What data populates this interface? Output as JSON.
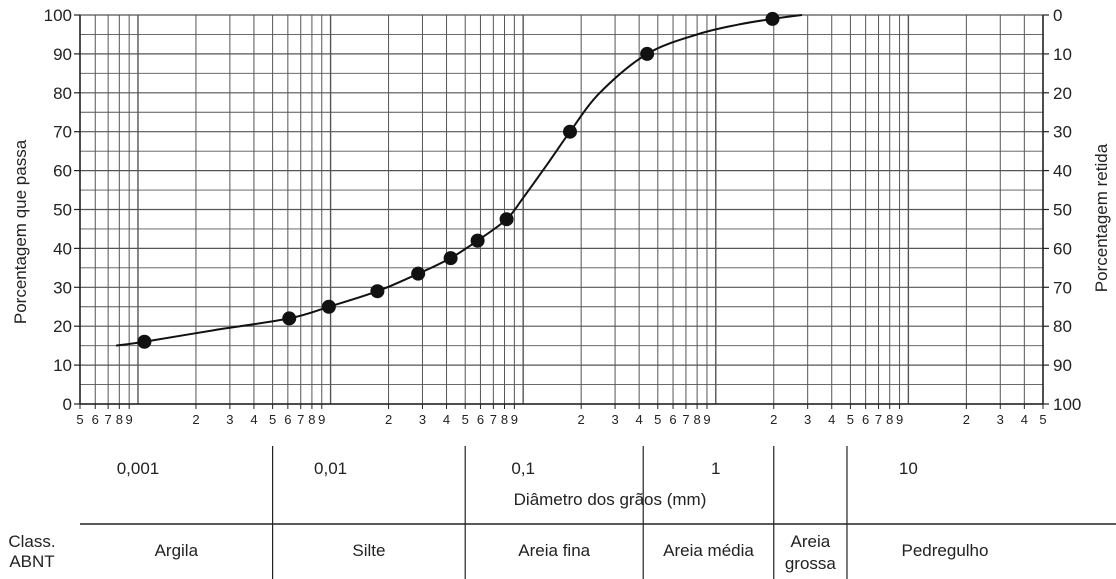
{
  "chart_data": {
    "type": "line",
    "title": "",
    "xlabel": "Diâmetro dos grãos (mm)",
    "ylabel_left": "Porcentagem que passa",
    "ylabel_right": "Porcentagem retida",
    "x_scale": "log",
    "xlim": [
      0.0005,
      50
    ],
    "ylim": [
      0,
      100
    ],
    "grid": true,
    "y_ticks_left": [
      "0",
      "10",
      "20",
      "30",
      "40",
      "50",
      "60",
      "70",
      "80",
      "90",
      "100"
    ],
    "y_ticks_right": [
      "100",
      "90",
      "80",
      "70",
      "60",
      "50",
      "40",
      "30",
      "20",
      "10",
      "0"
    ],
    "x_minor_tick_labels": [
      {
        "label": "5",
        "x": 0.0005
      },
      {
        "label": "6",
        "x": 0.0006
      },
      {
        "label": "7",
        "x": 0.0007
      },
      {
        "label": "8",
        "x": 0.0008
      },
      {
        "label": "9",
        "x": 0.0009
      },
      {
        "label": "2",
        "x": 0.002
      },
      {
        "label": "3",
        "x": 0.003
      },
      {
        "label": "4",
        "x": 0.004
      },
      {
        "label": "5",
        "x": 0.005
      },
      {
        "label": "6",
        "x": 0.006
      },
      {
        "label": "7",
        "x": 0.007
      },
      {
        "label": "8",
        "x": 0.008
      },
      {
        "label": "9",
        "x": 0.009
      },
      {
        "label": "2",
        "x": 0.02
      },
      {
        "label": "3",
        "x": 0.03
      },
      {
        "label": "4",
        "x": 0.04
      },
      {
        "label": "5",
        "x": 0.05
      },
      {
        "label": "6",
        "x": 0.06
      },
      {
        "label": "7",
        "x": 0.07
      },
      {
        "label": "8",
        "x": 0.08
      },
      {
        "label": "9",
        "x": 0.09
      },
      {
        "label": "2",
        "x": 0.2
      },
      {
        "label": "3",
        "x": 0.3
      },
      {
        "label": "4",
        "x": 0.4
      },
      {
        "label": "5",
        "x": 0.5
      },
      {
        "label": "6",
        "x": 0.6
      },
      {
        "label": "7",
        "x": 0.7
      },
      {
        "label": "8",
        "x": 0.8
      },
      {
        "label": "9",
        "x": 0.9
      },
      {
        "label": "2",
        "x": 2
      },
      {
        "label": "3",
        "x": 3
      },
      {
        "label": "4",
        "x": 4
      },
      {
        "label": "5",
        "x": 5
      },
      {
        "label": "6",
        "x": 6
      },
      {
        "label": "7",
        "x": 7
      },
      {
        "label": "8",
        "x": 8
      },
      {
        "label": "9",
        "x": 9
      },
      {
        "label": "2",
        "x": 20
      },
      {
        "label": "3",
        "x": 30
      },
      {
        "label": "4",
        "x": 40
      },
      {
        "label": "5",
        "x": 50
      }
    ],
    "decade_labels": [
      {
        "label": "0,001",
        "x": 0.001
      },
      {
        "label": "0,01",
        "x": 0.01
      },
      {
        "label": "0,1",
        "x": 0.1
      },
      {
        "label": "1",
        "x": 1
      },
      {
        "label": "10",
        "x": 10
      }
    ],
    "series": [
      {
        "points": [
          {
            "x": 0.00108,
            "y": 16
          },
          {
            "x": 0.0061,
            "y": 22
          },
          {
            "x": 0.0098,
            "y": 25
          },
          {
            "x": 0.0175,
            "y": 29
          },
          {
            "x": 0.0285,
            "y": 33.5
          },
          {
            "x": 0.042,
            "y": 37.5
          },
          {
            "x": 0.058,
            "y": 42
          },
          {
            "x": 0.082,
            "y": 47.5
          },
          {
            "x": 0.175,
            "y": 70
          },
          {
            "x": 0.44,
            "y": 90
          },
          {
            "x": 1.97,
            "y": 99
          }
        ],
        "curve": [
          {
            "x": 0.00077,
            "y": 15
          },
          {
            "x": 0.00108,
            "y": 16
          },
          {
            "x": 0.0025,
            "y": 19
          },
          {
            "x": 0.0061,
            "y": 22
          },
          {
            "x": 0.0098,
            "y": 25
          },
          {
            "x": 0.0175,
            "y": 29
          },
          {
            "x": 0.0285,
            "y": 33.5
          },
          {
            "x": 0.042,
            "y": 37.5
          },
          {
            "x": 0.058,
            "y": 42
          },
          {
            "x": 0.082,
            "y": 47.5
          },
          {
            "x": 0.1,
            "y": 53
          },
          {
            "x": 0.135,
            "y": 62
          },
          {
            "x": 0.175,
            "y": 70
          },
          {
            "x": 0.25,
            "y": 80
          },
          {
            "x": 0.44,
            "y": 90
          },
          {
            "x": 0.8,
            "y": 95
          },
          {
            "x": 1.3,
            "y": 97.5
          },
          {
            "x": 1.97,
            "y": 99
          },
          {
            "x": 2.8,
            "y": 100
          }
        ]
      }
    ]
  },
  "classification": {
    "title": "Class.\nABNT",
    "title_lines": [
      "Class.",
      "ABNT"
    ],
    "ranges": [
      {
        "label": "Argila",
        "from": 0.0005,
        "to": 0.005
      },
      {
        "label": "Silte",
        "from": 0.005,
        "to": 0.05
      },
      {
        "label": "Areia fina",
        "from": 0.05,
        "to": 0.42
      },
      {
        "label": "Areia média",
        "from": 0.42,
        "to": 2
      },
      {
        "label": "Areia\ngrossa",
        "label_lines": [
          "Areia",
          "grossa"
        ],
        "from": 2,
        "to": 4.8
      },
      {
        "label": "Pedregulho",
        "from": 4.8,
        "to": 50
      }
    ]
  }
}
